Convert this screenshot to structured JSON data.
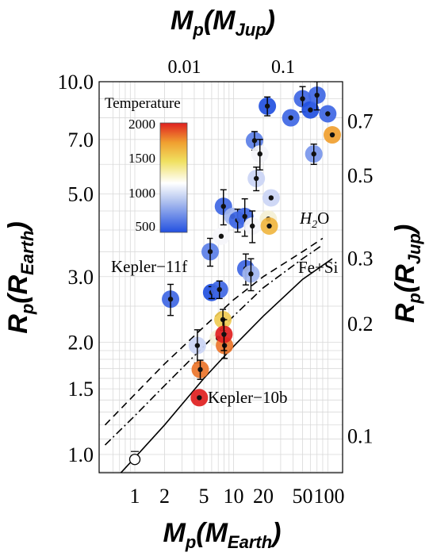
{
  "chart_data": {
    "type": "scatter",
    "axes": {
      "x_bottom": {
        "label": "M_p(M_Earth)",
        "scale": "log",
        "range": [
          0.5,
          100
        ],
        "ticks": [
          "1",
          "2",
          "5",
          "10",
          "20",
          "50",
          "100"
        ]
      },
      "x_top": {
        "label": "M_p(M_Jup)",
        "scale": "log",
        "ticks": [
          "0.01",
          "0.1"
        ]
      },
      "y_left": {
        "label": "R_p(R_Earth)",
        "scale": "log",
        "range": [
          0.82,
          10.0
        ],
        "ticks": [
          "1.0",
          "1.5",
          "2.0",
          "3.0",
          "5.0",
          "7.0",
          "10.0"
        ]
      },
      "y_right": {
        "label": "R_p(R_Jup)",
        "scale": "log",
        "ticks": [
          "0.1",
          "0.2",
          "0.3",
          "0.5",
          "0.7"
        ]
      }
    },
    "grid": true,
    "colorbar": {
      "title": "Temperature",
      "ticks": [
        "500",
        "1000",
        "1500",
        "2000"
      ],
      "range": [
        400,
        2000
      ],
      "placement": "top-left"
    },
    "annotations": [
      "Kepler−11f",
      "Kepler−10b",
      "H2O",
      "Fe+Si"
    ],
    "curves": [
      {
        "name": "H2O",
        "style": "dashed",
        "points": [
          [
            0.5,
            1.2
          ],
          [
            1,
            1.45
          ],
          [
            2,
            1.75
          ],
          [
            5,
            2.2
          ],
          [
            10,
            2.6
          ],
          [
            20,
            3.0
          ],
          [
            50,
            3.5
          ],
          [
            80,
            3.8
          ]
        ]
      },
      {
        "name": "",
        "style": "dashdot",
        "points": [
          [
            0.5,
            1.06
          ],
          [
            1,
            1.27
          ],
          [
            2,
            1.53
          ],
          [
            5,
            1.95
          ],
          [
            10,
            2.35
          ],
          [
            20,
            2.8
          ],
          [
            50,
            3.35
          ],
          [
            80,
            3.65
          ]
        ]
      },
      {
        "name": "Fe+Si",
        "style": "solid",
        "points": [
          [
            0.56,
            0.83
          ],
          [
            1,
            0.98
          ],
          [
            2,
            1.2
          ],
          [
            5,
            1.6
          ],
          [
            10,
            1.95
          ],
          [
            20,
            2.35
          ],
          [
            50,
            2.95
          ],
          [
            100,
            3.35
          ]
        ]
      }
    ],
    "points": [
      {
        "x": 1.0,
        "y": 0.97,
        "temp": null,
        "open": true
      },
      {
        "x": 2.3,
        "y": 2.61,
        "temp": 500,
        "yerr": 0.25,
        "label": "Kepler−11f"
      },
      {
        "x": 4.3,
        "y": 1.96,
        "temp": 900,
        "yerr": 0.2
      },
      {
        "x": 4.5,
        "y": 1.42,
        "temp": 2000,
        "label": "Kepler−10b"
      },
      {
        "x": 4.6,
        "y": 1.69,
        "temp": 1800,
        "yerr": 0.1
      },
      {
        "x": 5.8,
        "y": 3.5,
        "temp": 600,
        "yerr": 0.3
      },
      {
        "x": 6.0,
        "y": 2.72,
        "temp": 400,
        "yerr": 0.1
      },
      {
        "x": 7.2,
        "y": 2.77,
        "temp": 500,
        "yerr": 0.15
      },
      {
        "x": 7.5,
        "y": 3.85,
        "temp": 1000
      },
      {
        "x": 7.0,
        "y": 2.05,
        "temp": 1100
      },
      {
        "x": 7.8,
        "y": 2.3,
        "temp": 1500,
        "yerr": 0.15
      },
      {
        "x": 8.1,
        "y": 1.96,
        "temp": 1800,
        "yerr": 0.15
      },
      {
        "x": 8.0,
        "y": 2.1,
        "temp": 2000,
        "yerr": 0.2
      },
      {
        "x": 7.9,
        "y": 4.63,
        "temp": 500,
        "yerr": 0.5
      },
      {
        "x": 9.8,
        "y": 4.35,
        "temp": 800
      },
      {
        "x": 11.0,
        "y": 4.25,
        "temp": 500,
        "yerr": 0.3
      },
      {
        "x": 13.0,
        "y": 4.35,
        "temp": 500,
        "yerr": 0.5
      },
      {
        "x": 13.3,
        "y": 3.15,
        "temp": 500,
        "yerr": 0.3
      },
      {
        "x": 15.0,
        "y": 3.05,
        "temp": 800,
        "yerr": 0.3
      },
      {
        "x": 15.5,
        "y": 4.1,
        "temp": 1000,
        "yerr": 0.4
      },
      {
        "x": 16.3,
        "y": 6.95,
        "temp": 600,
        "yerr": 0.4
      },
      {
        "x": 17.0,
        "y": 5.5,
        "temp": 900,
        "yerr": 0.4
      },
      {
        "x": 18.5,
        "y": 6.4,
        "temp": 1000,
        "yerr": 0.6
      },
      {
        "x": 22.5,
        "y": 4.28,
        "temp": 1100
      },
      {
        "x": 23.0,
        "y": 4.1,
        "temp": 1600
      },
      {
        "x": 24.0,
        "y": 4.88,
        "temp": 900
      },
      {
        "x": 22.0,
        "y": 8.6,
        "temp": 400,
        "yerr": 0.5
      },
      {
        "x": 38.0,
        "y": 8.0,
        "temp": 500
      },
      {
        "x": 50.0,
        "y": 9.0,
        "temp": 500,
        "yerr": 0.7
      },
      {
        "x": 60.0,
        "y": 8.4,
        "temp": 400
      },
      {
        "x": 65.0,
        "y": 6.4,
        "temp": 700,
        "yerr": 0.4
      },
      {
        "x": 70.0,
        "y": 9.2,
        "temp": 500,
        "yerr": 0.8
      },
      {
        "x": 90.0,
        "y": 8.2,
        "temp": 500
      },
      {
        "x": 100.0,
        "y": 7.2,
        "temp": 1700
      }
    ]
  }
}
